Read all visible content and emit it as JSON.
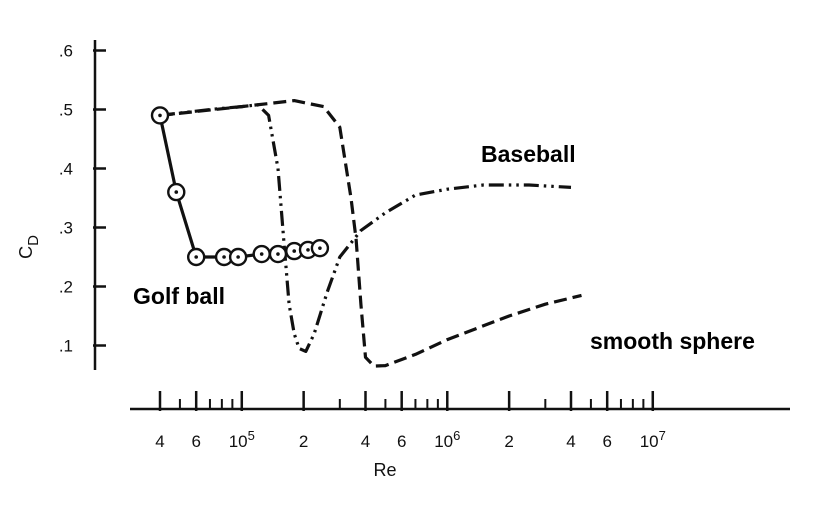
{
  "chart_data": {
    "type": "line",
    "xlabel": "Re",
    "ylabel": "C",
    "ylabel_sub": "D",
    "xscale": "log",
    "xlim": [
      30000,
      10000000
    ],
    "ylim": [
      0,
      0.6
    ],
    "grid": false,
    "x_ticks": [
      {
        "value": 40000,
        "label": "4"
      },
      {
        "value": 60000,
        "label": "6"
      },
      {
        "value": 100000,
        "label": "10",
        "exp": "5"
      },
      {
        "value": 200000,
        "label": "2"
      },
      {
        "value": 400000,
        "label": "4"
      },
      {
        "value": 600000,
        "label": "6"
      },
      {
        "value": 1000000,
        "label": "10",
        "exp": "6"
      },
      {
        "value": 2000000,
        "label": "2"
      },
      {
        "value": 4000000,
        "label": "4"
      },
      {
        "value": 6000000,
        "label": "6"
      },
      {
        "value": 10000000,
        "label": "10",
        "exp": "7"
      }
    ],
    "x_minor_ticks": [
      50000,
      70000,
      80000,
      90000,
      300000,
      500000,
      700000,
      800000,
      900000,
      3000000,
      5000000,
      7000000,
      8000000,
      9000000
    ],
    "y_ticks": [
      {
        "value": 0.1,
        "label": ".1"
      },
      {
        "value": 0.2,
        "label": ".2"
      },
      {
        "value": 0.3,
        "label": ".3"
      },
      {
        "value": 0.4,
        "label": ".4"
      },
      {
        "value": 0.5,
        "label": ".5"
      },
      {
        "value": 0.6,
        "label": ".6"
      }
    ],
    "series": [
      {
        "name": "Golf ball",
        "style": "solid",
        "markers": true,
        "points": [
          [
            40000,
            0.49
          ],
          [
            48000,
            0.36
          ],
          [
            60000,
            0.25
          ],
          [
            82000,
            0.25
          ],
          [
            96000,
            0.25
          ],
          [
            125000,
            0.255
          ],
          [
            150000,
            0.255
          ],
          [
            180000,
            0.26
          ],
          [
            210000,
            0.262
          ],
          [
            240000,
            0.265
          ]
        ]
      },
      {
        "name": "Baseball",
        "style": "dashdotdot",
        "markers": false,
        "points": [
          [
            40000,
            0.49
          ],
          [
            70000,
            0.5
          ],
          [
            100000,
            0.505
          ],
          [
            120000,
            0.508
          ],
          [
            135000,
            0.49
          ],
          [
            150000,
            0.4
          ],
          [
            160000,
            0.28
          ],
          [
            170000,
            0.17
          ],
          [
            180000,
            0.12
          ],
          [
            190000,
            0.095
          ],
          [
            205000,
            0.09
          ],
          [
            225000,
            0.12
          ],
          [
            260000,
            0.19
          ],
          [
            300000,
            0.25
          ],
          [
            380000,
            0.295
          ],
          [
            500000,
            0.325
          ],
          [
            700000,
            0.355
          ],
          [
            1000000,
            0.365
          ],
          [
            1500000,
            0.372
          ],
          [
            2500000,
            0.372
          ],
          [
            4000000,
            0.368
          ]
        ]
      },
      {
        "name": "smooth sphere",
        "style": "dashed",
        "markers": false,
        "points": [
          [
            40000,
            0.49
          ],
          [
            100000,
            0.505
          ],
          [
            180000,
            0.515
          ],
          [
            250000,
            0.505
          ],
          [
            300000,
            0.47
          ],
          [
            340000,
            0.35
          ],
          [
            360000,
            0.28
          ],
          [
            380000,
            0.17
          ],
          [
            400000,
            0.08
          ],
          [
            440000,
            0.065
          ],
          [
            500000,
            0.066
          ],
          [
            700000,
            0.085
          ],
          [
            1000000,
            0.11
          ],
          [
            2000000,
            0.15
          ],
          [
            3000000,
            0.17
          ],
          [
            4500000,
            0.185
          ]
        ]
      }
    ],
    "annotations": [
      {
        "text": "Baseball",
        "series": "Baseball"
      },
      {
        "text": "Golf ball",
        "series": "Golf ball"
      },
      {
        "text": "smooth sphere",
        "series": "smooth sphere"
      }
    ]
  }
}
